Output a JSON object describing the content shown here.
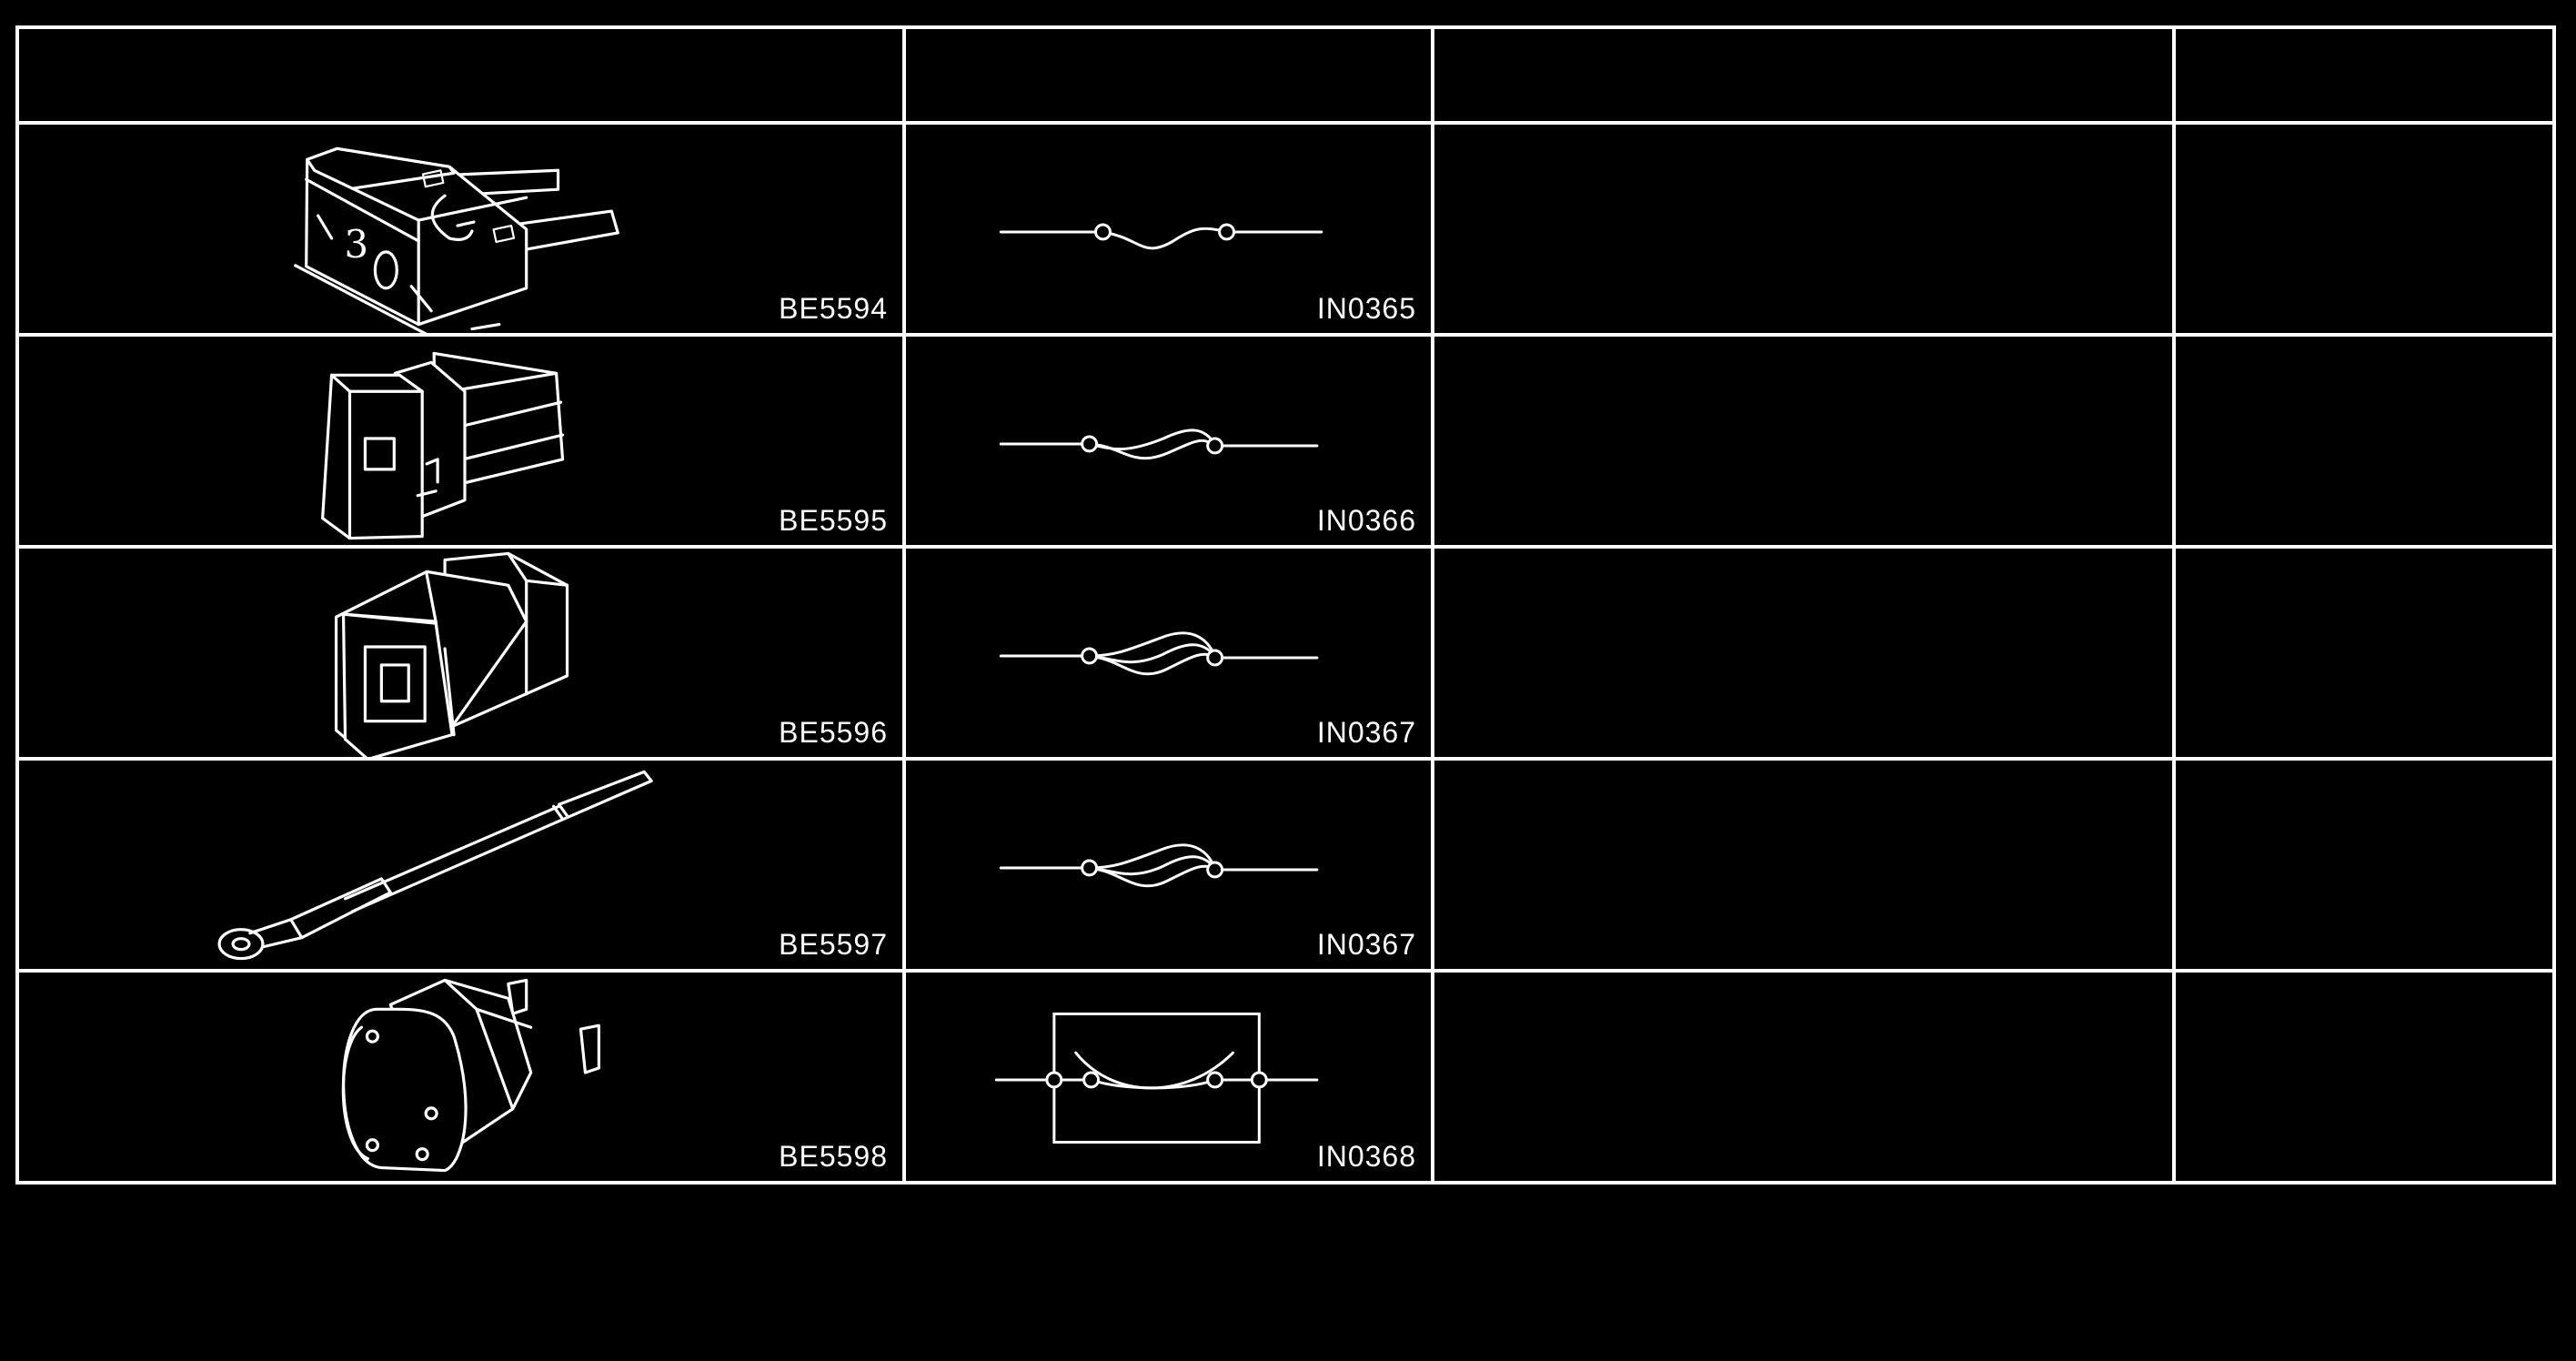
{
  "table": {
    "headers": [
      "",
      "",
      "",
      ""
    ],
    "rows": [
      {
        "illustration_code": "BE5594",
        "symbol_code": "IN0365",
        "icon": "blade-fuse-illustration",
        "symbol": "fuse-symbol"
      },
      {
        "illustration_code": "BE5595",
        "symbol_code": "IN0366",
        "icon": "medium-current-fuse-illustration",
        "symbol": "medium-current-fuse-symbol"
      },
      {
        "illustration_code": "BE5596",
        "symbol_code": "IN0367",
        "icon": "high-current-fuse-illustration",
        "symbol": "high-current-fuse-symbol"
      },
      {
        "illustration_code": "BE5597",
        "symbol_code": "IN0367",
        "icon": "fusible-link-illustration",
        "symbol": "high-current-fuse-symbol"
      },
      {
        "illustration_code": "BE5598",
        "symbol_code": "IN0368",
        "icon": "circuit-breaker-illustration",
        "symbol": "circuit-breaker-symbol"
      }
    ]
  },
  "colors": {
    "background": "#000000",
    "lines": "#ffffff"
  }
}
